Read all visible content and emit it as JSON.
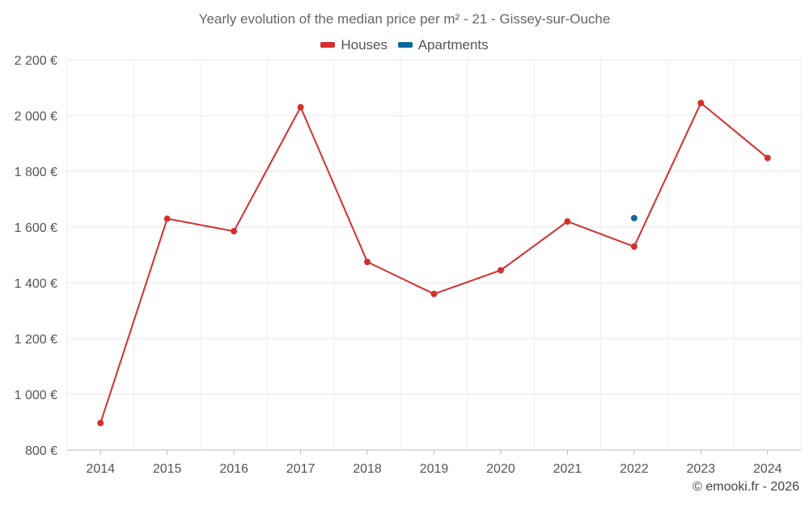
{
  "chart_data": {
    "type": "line",
    "title": "Yearly evolution of the median price per m² - 21 - Gissey-sur-Ouche",
    "categories": [
      "2014",
      "2015",
      "2016",
      "2017",
      "2018",
      "2019",
      "2020",
      "2021",
      "2022",
      "2023",
      "2024"
    ],
    "ylim": [
      800,
      2200
    ],
    "yticks": [
      800,
      1000,
      1200,
      1400,
      1600,
      1800,
      2000,
      2200
    ],
    "ytick_labels": [
      "800 €",
      "1 000 €",
      "1 200 €",
      "1 400 €",
      "1 600 €",
      "1 800 €",
      "2 000 €",
      "2 200 €"
    ],
    "grid": true,
    "legend_position": "top-center",
    "series": [
      {
        "name": "Houses",
        "color": "#d32f2f",
        "values": [
          897,
          1630,
          1585,
          2030,
          1475,
          1360,
          1445,
          1620,
          1530,
          2045,
          1848
        ]
      },
      {
        "name": "Apartments",
        "color": "#0a6a9c",
        "values": [
          null,
          null,
          null,
          null,
          null,
          null,
          null,
          null,
          1632,
          null,
          null
        ]
      }
    ]
  },
  "credit": "© emooki.fr - 2026"
}
